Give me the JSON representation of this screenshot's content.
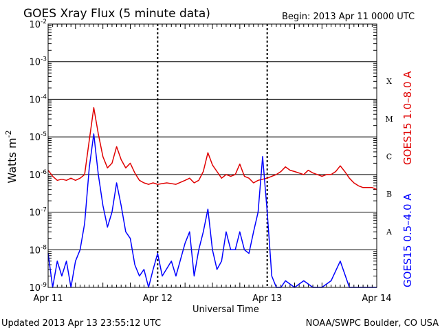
{
  "header": {
    "title": "GOES Xray Flux (5 minute data)",
    "begin": "Begin:  2013 Apr 11 0000 UTC"
  },
  "footer": {
    "updated": "Updated 2013 Apr 13 23:55:12 UTC",
    "source": "NOAA/SWPC Boulder, CO USA"
  },
  "colors": {
    "long": "#e00000",
    "short": "#0000ff",
    "grid": "#000000"
  },
  "chart_data": {
    "type": "line",
    "title": "GOES Xray Flux (5 minute data)",
    "xlabel": "Universal Time",
    "ylabel": "Watts m^-2",
    "ylabel_main": "Watts m",
    "ylabel_exp": "-2",
    "yscale": "log",
    "ylim": [
      1e-09,
      0.01
    ],
    "xlim": [
      "2013-04-11",
      "2013-04-14"
    ],
    "x_ticks": [
      "Apr 11",
      "Apr 12",
      "Apr 13",
      "Apr 14"
    ],
    "y_ticks": [
      {
        "base": "10",
        "exp": "-2"
      },
      {
        "base": "10",
        "exp": "-3"
      },
      {
        "base": "10",
        "exp": "-4"
      },
      {
        "base": "10",
        "exp": "-5"
      },
      {
        "base": "10",
        "exp": "-6"
      },
      {
        "base": "10",
        "exp": "-7"
      },
      {
        "base": "10",
        "exp": "-8"
      },
      {
        "base": "10",
        "exp": "-9"
      }
    ],
    "flare_classes": [
      "X",
      "M",
      "C",
      "B",
      "A"
    ],
    "grid": true,
    "series": [
      {
        "name": "GOES15 1.0–8.0 A",
        "color": "#e00000",
        "points": [
          [
            "2013-04-11T00:00",
            1.3e-06
          ],
          [
            "2013-04-11T01:00",
            9e-07
          ],
          [
            "2013-04-11T02:00",
            7e-07
          ],
          [
            "2013-04-11T03:00",
            7.5e-07
          ],
          [
            "2013-04-11T04:00",
            7e-07
          ],
          [
            "2013-04-11T05:00",
            8e-07
          ],
          [
            "2013-04-11T06:00",
            7e-07
          ],
          [
            "2013-04-11T07:00",
            8e-07
          ],
          [
            "2013-04-11T08:00",
            1e-06
          ],
          [
            "2013-04-11T09:00",
            8e-06
          ],
          [
            "2013-04-11T10:00",
            6e-05
          ],
          [
            "2013-04-11T11:00",
            1.2e-05
          ],
          [
            "2013-04-11T12:00",
            3e-06
          ],
          [
            "2013-04-11T13:00",
            1.5e-06
          ],
          [
            "2013-04-11T14:00",
            2e-06
          ],
          [
            "2013-04-11T15:00",
            5.5e-06
          ],
          [
            "2013-04-11T16:00",
            2.5e-06
          ],
          [
            "2013-04-11T17:00",
            1.5e-06
          ],
          [
            "2013-04-11T18:00",
            2e-06
          ],
          [
            "2013-04-11T19:00",
            1.1e-06
          ],
          [
            "2013-04-11T20:00",
            7e-07
          ],
          [
            "2013-04-11T21:00",
            6e-07
          ],
          [
            "2013-04-11T22:00",
            5.5e-07
          ],
          [
            "2013-04-11T23:00",
            6e-07
          ],
          [
            "2013-04-12T00:00",
            5.5e-07
          ],
          [
            "2013-04-12T02:00",
            6e-07
          ],
          [
            "2013-04-12T04:00",
            5.5e-07
          ],
          [
            "2013-04-12T06:00",
            7e-07
          ],
          [
            "2013-04-12T07:00",
            8e-07
          ],
          [
            "2013-04-12T08:00",
            6e-07
          ],
          [
            "2013-04-12T09:00",
            7e-07
          ],
          [
            "2013-04-12T10:00",
            1.2e-06
          ],
          [
            "2013-04-12T11:00",
            3.8e-06
          ],
          [
            "2013-04-12T12:00",
            1.8e-06
          ],
          [
            "2013-04-12T13:00",
            1.2e-06
          ],
          [
            "2013-04-12T14:00",
            8e-07
          ],
          [
            "2013-04-12T15:00",
            1e-06
          ],
          [
            "2013-04-12T16:00",
            9e-07
          ],
          [
            "2013-04-12T17:00",
            1e-06
          ],
          [
            "2013-04-12T18:00",
            1.9e-06
          ],
          [
            "2013-04-12T19:00",
            9e-07
          ],
          [
            "2013-04-12T20:00",
            8e-07
          ],
          [
            "2013-04-12T21:00",
            6e-07
          ],
          [
            "2013-04-12T22:00",
            7e-07
          ],
          [
            "2013-04-13T00:00",
            8e-07
          ],
          [
            "2013-04-13T01:00",
            9e-07
          ],
          [
            "2013-04-13T02:00",
            1e-06
          ],
          [
            "2013-04-13T03:00",
            1.2e-06
          ],
          [
            "2013-04-13T04:00",
            1.6e-06
          ],
          [
            "2013-04-13T05:00",
            1.3e-06
          ],
          [
            "2013-04-13T06:00",
            1.2e-06
          ],
          [
            "2013-04-13T08:00",
            1e-06
          ],
          [
            "2013-04-13T09:00",
            1.3e-06
          ],
          [
            "2013-04-13T10:00",
            1.1e-06
          ],
          [
            "2013-04-13T11:00",
            1e-06
          ],
          [
            "2013-04-13T12:00",
            9e-07
          ],
          [
            "2013-04-13T13:00",
            1e-06
          ],
          [
            "2013-04-13T14:00",
            1e-06
          ],
          [
            "2013-04-13T15:00",
            1.2e-06
          ],
          [
            "2013-04-13T16:00",
            1.7e-06
          ],
          [
            "2013-04-13T17:00",
            1.2e-06
          ],
          [
            "2013-04-13T18:00",
            8e-07
          ],
          [
            "2013-04-13T19:00",
            6e-07
          ],
          [
            "2013-04-13T20:00",
            5e-07
          ],
          [
            "2013-04-13T21:00",
            4.5e-07
          ],
          [
            "2013-04-13T22:00",
            4.5e-07
          ],
          [
            "2013-04-13T23:00",
            4.5e-07
          ],
          [
            "2013-04-14T00:00",
            4e-07
          ]
        ]
      },
      {
        "name": "GOES15 0.5–4.0 A",
        "color": "#0000ff",
        "points": [
          [
            "2013-04-11T00:00",
            8e-09
          ],
          [
            "2013-04-11T01:00",
            1e-09
          ],
          [
            "2013-04-11T02:00",
            5e-09
          ],
          [
            "2013-04-11T03:00",
            2e-09
          ],
          [
            "2013-04-11T04:00",
            5e-09
          ],
          [
            "2013-04-11T05:00",
            1e-09
          ],
          [
            "2013-04-11T06:00",
            5e-09
          ],
          [
            "2013-04-11T07:00",
            1e-08
          ],
          [
            "2013-04-11T08:00",
            5e-08
          ],
          [
            "2013-04-11T09:00",
            1.5e-06
          ],
          [
            "2013-04-11T10:00",
            1.2e-05
          ],
          [
            "2013-04-11T11:00",
            1e-06
          ],
          [
            "2013-04-11T12:00",
            1.5e-07
          ],
          [
            "2013-04-11T13:00",
            4e-08
          ],
          [
            "2013-04-11T14:00",
            1e-07
          ],
          [
            "2013-04-11T15:00",
            6e-07
          ],
          [
            "2013-04-11T16:00",
            1.5e-07
          ],
          [
            "2013-04-11T17:00",
            3e-08
          ],
          [
            "2013-04-11T18:00",
            2e-08
          ],
          [
            "2013-04-11T19:00",
            4e-09
          ],
          [
            "2013-04-11T20:00",
            2e-09
          ],
          [
            "2013-04-11T21:00",
            3e-09
          ],
          [
            "2013-04-11T22:00",
            1e-09
          ],
          [
            "2013-04-11T23:00",
            3e-09
          ],
          [
            "2013-04-12T00:00",
            8e-09
          ],
          [
            "2013-04-12T01:00",
            2e-09
          ],
          [
            "2013-04-12T03:00",
            5e-09
          ],
          [
            "2013-04-12T04:00",
            2e-09
          ],
          [
            "2013-04-12T06:00",
            1.5e-08
          ],
          [
            "2013-04-12T07:00",
            3e-08
          ],
          [
            "2013-04-12T08:00",
            2e-09
          ],
          [
            "2013-04-12T09:00",
            1e-08
          ],
          [
            "2013-04-12T10:00",
            3e-08
          ],
          [
            "2013-04-12T11:00",
            1.2e-07
          ],
          [
            "2013-04-12T12:00",
            1e-08
          ],
          [
            "2013-04-12T13:00",
            3e-09
          ],
          [
            "2013-04-12T14:00",
            5e-09
          ],
          [
            "2013-04-12T15:00",
            3e-08
          ],
          [
            "2013-04-12T16:00",
            1e-08
          ],
          [
            "2013-04-12T17:00",
            1e-08
          ],
          [
            "2013-04-12T18:00",
            3e-08
          ],
          [
            "2013-04-12T19:00",
            1e-08
          ],
          [
            "2013-04-12T20:00",
            8e-09
          ],
          [
            "2013-04-12T21:00",
            3e-08
          ],
          [
            "2013-04-12T22:00",
            1e-07
          ],
          [
            "2013-04-12T23:00",
            3e-06
          ],
          [
            "2013-04-13T00:00",
            1e-07
          ],
          [
            "2013-04-13T01:00",
            2e-09
          ],
          [
            "2013-04-13T02:00",
            1e-09
          ],
          [
            "2013-04-13T03:00",
            1e-09
          ],
          [
            "2013-04-13T04:00",
            1.5e-09
          ],
          [
            "2013-04-13T06:00",
            1e-09
          ],
          [
            "2013-04-13T08:00",
            1.5e-09
          ],
          [
            "2013-04-13T10:00",
            1e-09
          ],
          [
            "2013-04-13T12:00",
            1e-09
          ],
          [
            "2013-04-13T14:00",
            1.5e-09
          ],
          [
            "2013-04-13T16:00",
            5e-09
          ],
          [
            "2013-04-13T18:00",
            1e-09
          ],
          [
            "2013-04-13T20:00",
            1e-09
          ],
          [
            "2013-04-13T22:00",
            1e-09
          ],
          [
            "2013-04-14T00:00",
            1e-09
          ]
        ]
      }
    ]
  }
}
